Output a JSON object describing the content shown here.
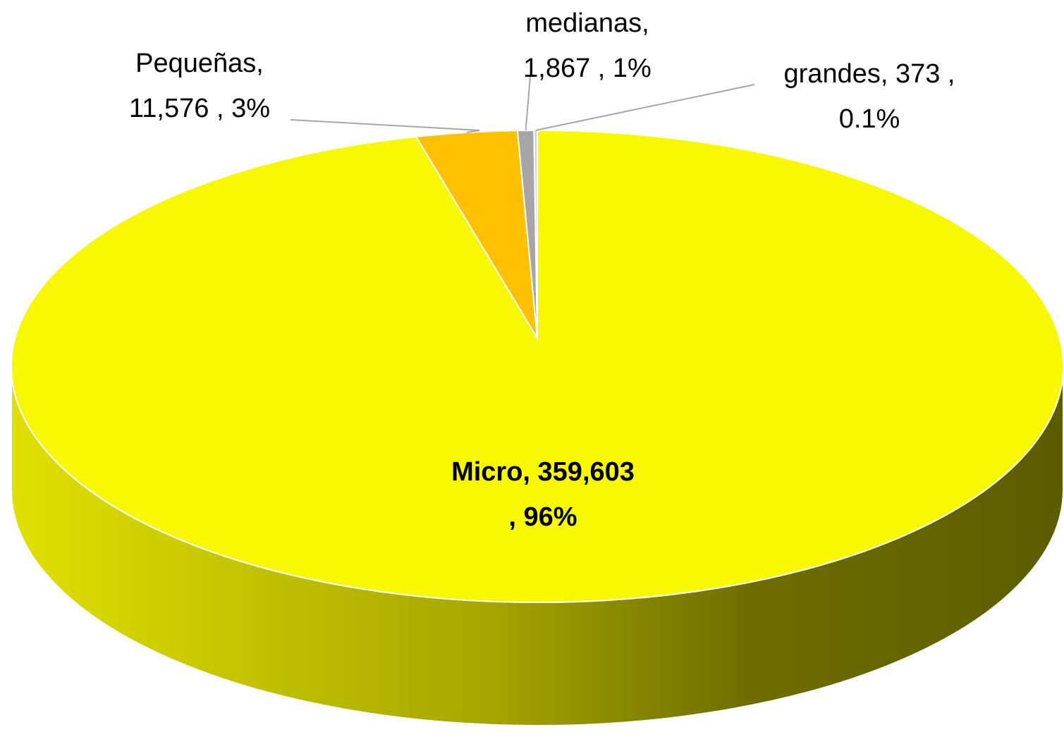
{
  "chart_data": {
    "type": "pie",
    "values": [
      359603,
      11576,
      1867,
      373
    ],
    "value_labels": [
      [
        "Micro,  359,603",
        ", 96%"
      ],
      [
        "Pequeñas,",
        "11,576 , 3%"
      ],
      [
        "medianas,",
        "1,867 , 1%"
      ],
      [
        "grandes,  373 ,",
        "0.1%"
      ]
    ],
    "colors": [
      "#f8f800",
      "#ffc000",
      "#a6a6a6",
      "#d0d0d0"
    ]
  }
}
